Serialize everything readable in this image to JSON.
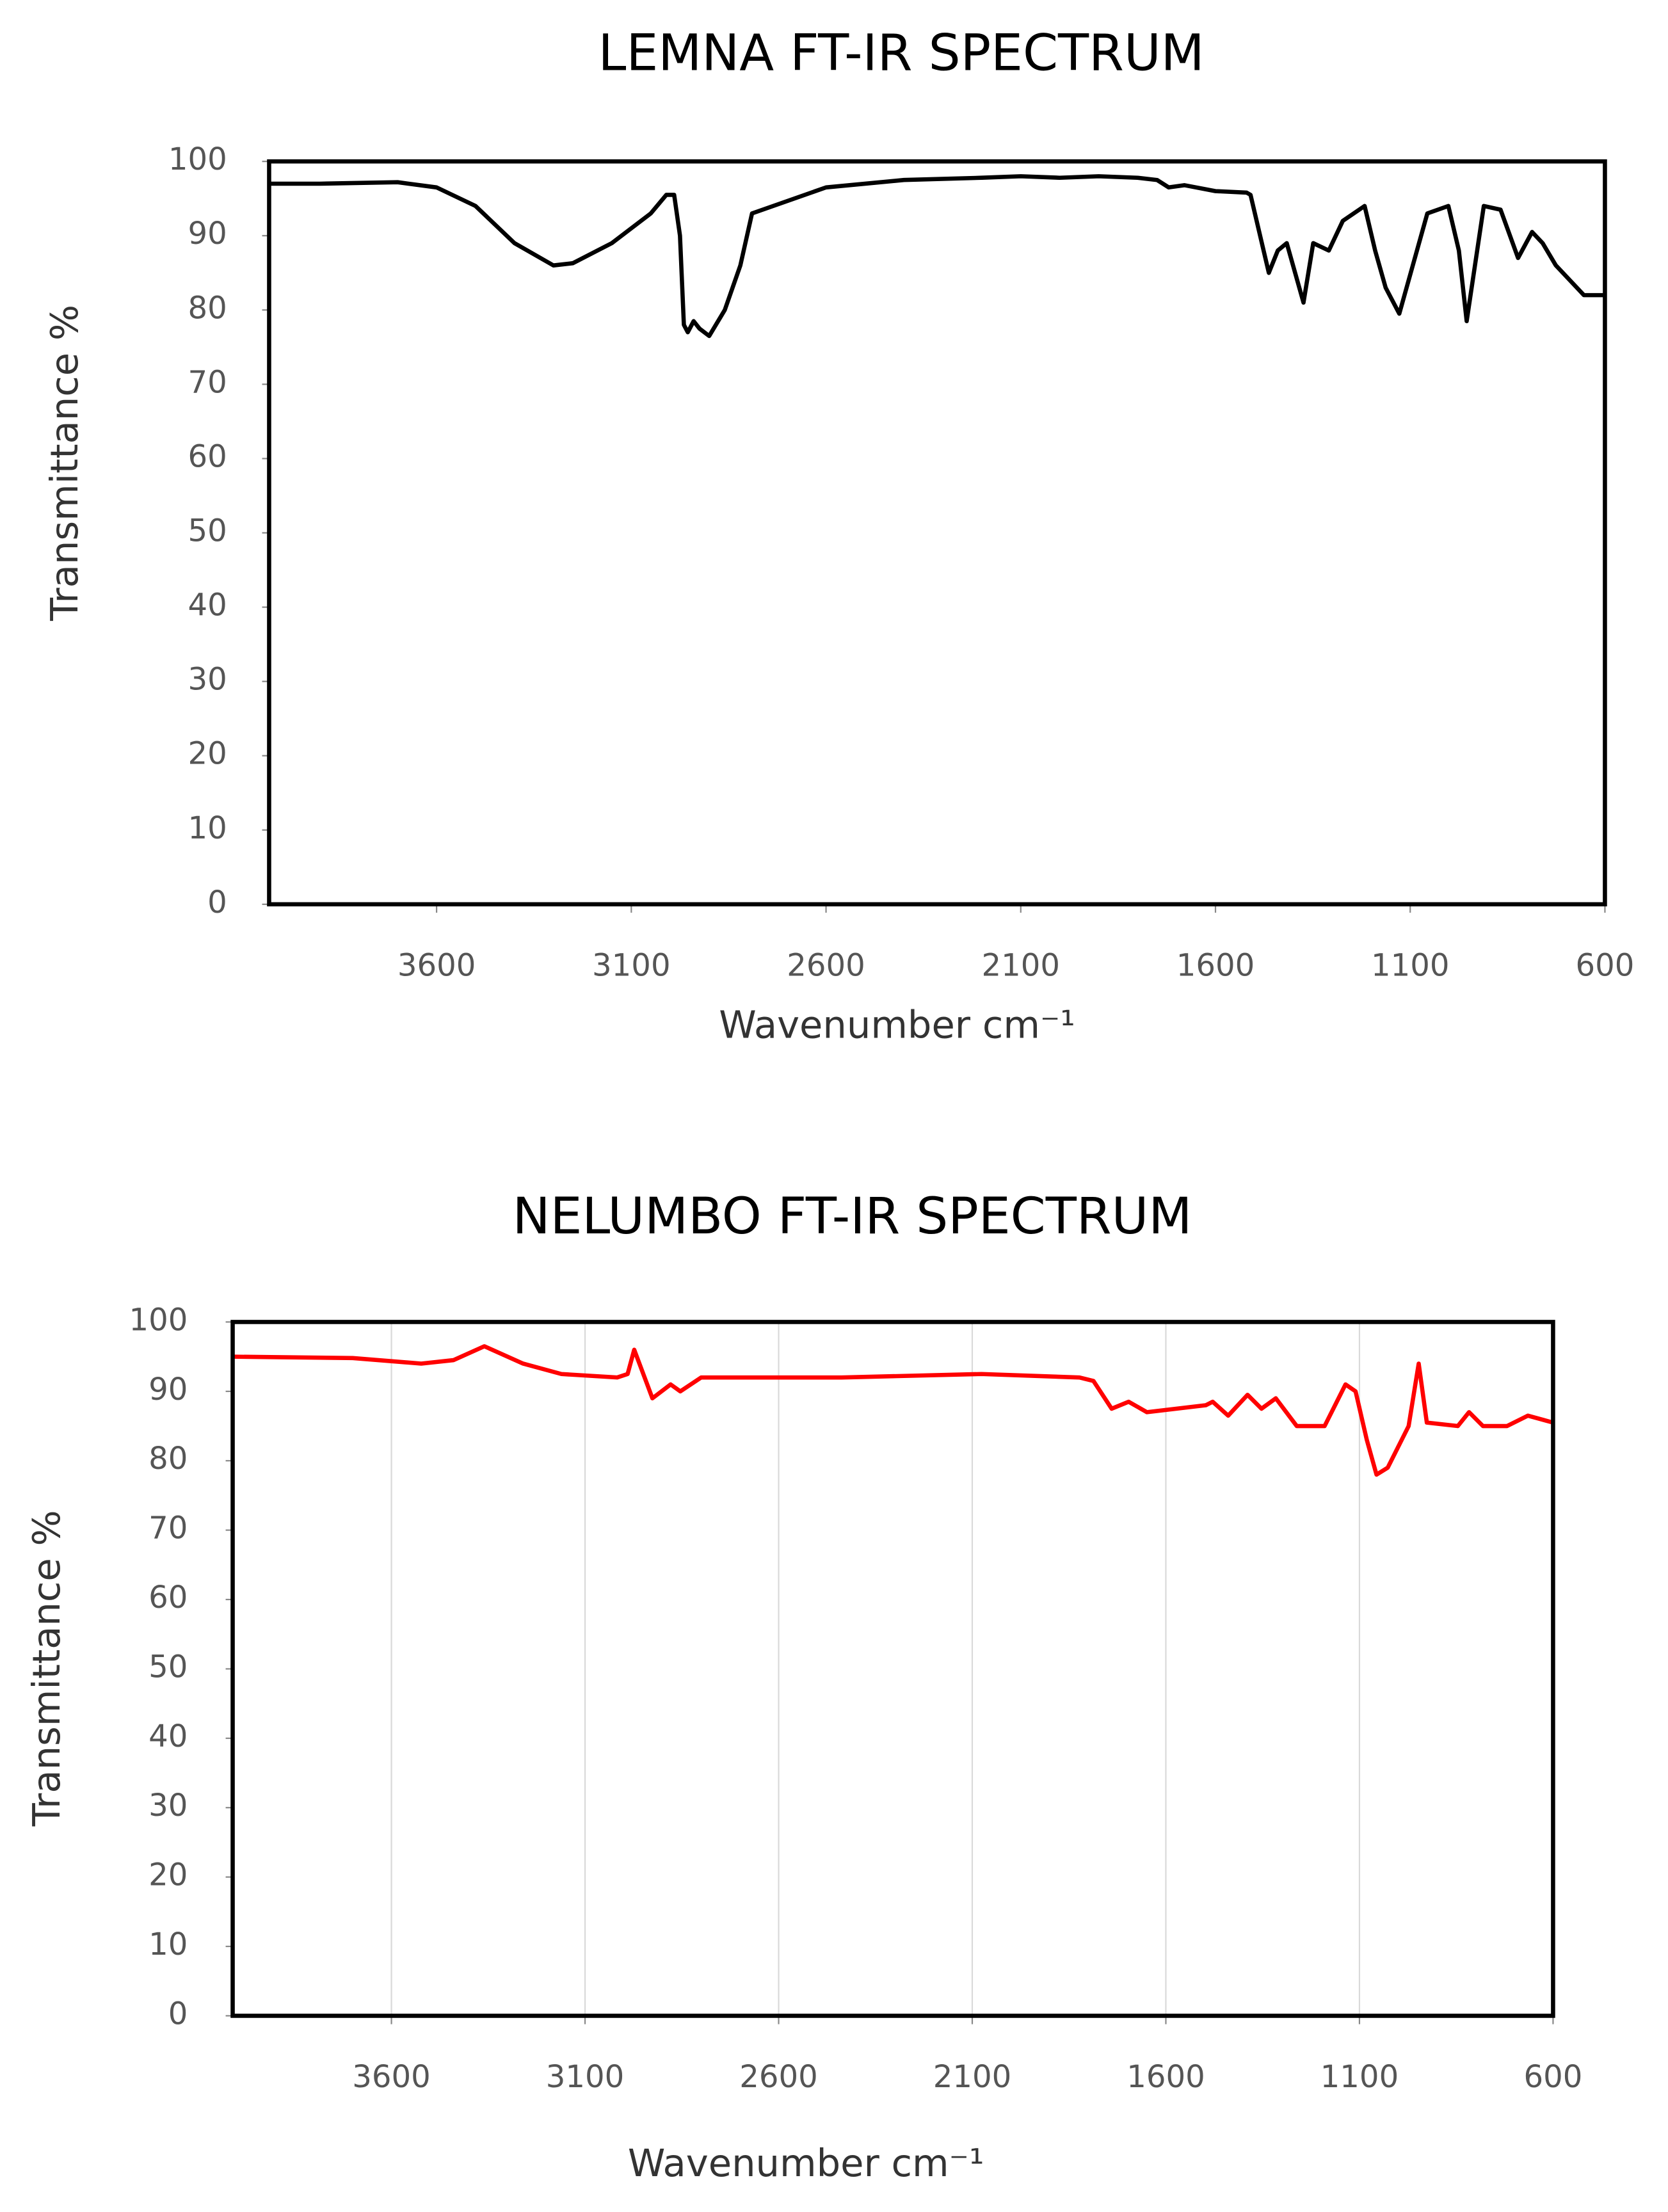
{
  "chart_data": [
    {
      "type": "line",
      "title": "LEMNA FT-IR SPECTRUM",
      "x_label": "Wavenumber cm⁻¹",
      "y_label": "Transmittance %",
      "xlim": [
        4030,
        600
      ],
      "xticks": [
        3600,
        3100,
        2600,
        2100,
        1600,
        1100,
        600
      ],
      "ylim": [
        0,
        100
      ],
      "yticks": [
        0,
        10,
        20,
        30,
        40,
        50,
        60,
        70,
        80,
        90,
        100
      ],
      "grid": false,
      "color": "#000000",
      "x": [
        4030,
        3900,
        3700,
        3600,
        3500,
        3400,
        3300,
        3250,
        3150,
        3050,
        3010,
        2990,
        2975,
        2965,
        2955,
        2940,
        2925,
        2900,
        2860,
        2820,
        2790,
        2600,
        2400,
        2200,
        2100,
        2000,
        1900,
        1800,
        1750,
        1720,
        1680,
        1600,
        1520,
        1510,
        1463,
        1440,
        1417,
        1374,
        1349,
        1309,
        1273,
        1217,
        1190,
        1163,
        1128,
        1056,
        1002,
        975,
        955,
        911,
        868,
        823,
        787,
        760,
        726,
        654,
        600
      ],
      "values": [
        97,
        97,
        97.2,
        96.5,
        94,
        89,
        86,
        86.3,
        89,
        93,
        95.5,
        95.5,
        90,
        78,
        77,
        78.5,
        77.5,
        76.5,
        80,
        86,
        93,
        96.5,
        97.5,
        97.8,
        98,
        97.8,
        98,
        97.8,
        97.5,
        96.5,
        96.8,
        96,
        95.8,
        95.5,
        85,
        88,
        89,
        81,
        89,
        88,
        92,
        94,
        88,
        83,
        79.5,
        93,
        94,
        88,
        78.5,
        94,
        93.5,
        87,
        90.5,
        89,
        86,
        82,
        82
      ]
    },
    {
      "type": "line",
      "title": "NELUMBO FT-IR SPECTRUM",
      "x_label": "Wavenumber cm⁻¹",
      "y_label": "Transmittance %",
      "xlim": [
        4010,
        600
      ],
      "xticks": [
        3600,
        3100,
        2600,
        2100,
        1600,
        1100,
        600
      ],
      "ylim": [
        0,
        100
      ],
      "yticks": [
        0,
        10,
        20,
        30,
        40,
        50,
        60,
        70,
        80,
        90,
        100
      ],
      "grid": "x",
      "color": "#ff0000",
      "x": [
        4010,
        3700,
        3523,
        3440,
        3360,
        3260,
        3161,
        3017,
        2990,
        2973,
        2926,
        2879,
        2854,
        2800,
        2438,
        2076,
        1823,
        1787,
        1740,
        1696,
        1649,
        1497,
        1479,
        1439,
        1389,
        1353,
        1316,
        1262,
        1190,
        1136,
        1110,
        1081,
        1056,
        1027,
        973,
        947,
        926,
        846,
        817,
        781,
        719,
        665,
        600
      ],
      "values": [
        95,
        94.8,
        94,
        94.5,
        96.5,
        94,
        92.5,
        92,
        92.5,
        96,
        89,
        91,
        90,
        92,
        92,
        92.5,
        92,
        91.5,
        87.5,
        88.5,
        87,
        88,
        88.5,
        86.5,
        89.5,
        87.5,
        89,
        85,
        85,
        91,
        90,
        83,
        78,
        79,
        85,
        94,
        85.5,
        85,
        87,
        85,
        85,
        86.5,
        85.5
      ]
    }
  ]
}
